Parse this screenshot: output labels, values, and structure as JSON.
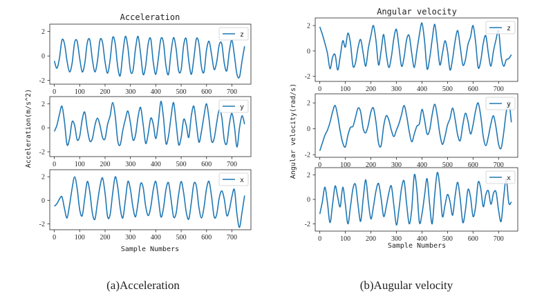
{
  "colors": {
    "line": "#1f77b4",
    "axis": "#222222",
    "background": "#ffffff"
  },
  "chart_data": [
    {
      "type": "line",
      "title": "Acceleration",
      "ylabel": "Acceleration(m/s^2)",
      "xlabel": "Sample Numbers",
      "caption": "(a)Acceleration",
      "panels": [
        {
          "legend": "z",
          "xlim": [
            -18,
            775
          ],
          "ylim": [
            -2.3,
            2.6
          ],
          "yticks": [
            -2,
            0,
            2
          ],
          "xticks": [
            0,
            100,
            200,
            300,
            400,
            500,
            600,
            700
          ],
          "x": [
            0,
            10,
            20,
            30,
            40,
            50,
            60,
            70,
            80,
            90,
            100,
            110,
            120,
            130,
            140,
            150,
            160,
            170,
            180,
            190,
            200,
            210,
            220,
            230,
            240,
            250,
            260,
            270,
            280,
            290,
            300,
            310,
            320,
            330,
            340,
            350,
            360,
            370,
            380,
            390,
            400,
            410,
            420,
            430,
            440,
            450,
            460,
            470,
            480,
            490,
            500,
            510,
            520,
            530,
            540,
            550,
            560,
            570,
            580,
            590,
            600,
            610,
            620,
            630,
            640,
            650,
            660,
            670,
            680,
            690,
            700,
            710,
            720,
            730,
            740,
            750
          ],
          "values": [
            -0.4,
            -1.0,
            -0.2,
            1.3,
            1.0,
            -0.4,
            -1.3,
            -0.6,
            1.1,
            1.2,
            -0.2,
            -1.3,
            -0.6,
            1.1,
            1.3,
            -0.3,
            -1.3,
            -0.4,
            1.3,
            1.1,
            -0.5,
            -1.4,
            -0.3,
            1.5,
            1.0,
            -0.9,
            -1.6,
            0.2,
            1.6,
            0.7,
            -1.2,
            -1.2,
            0.6,
            1.6,
            0.2,
            -1.5,
            -0.8,
            1.0,
            1.4,
            -0.5,
            -1.5,
            -0.2,
            1.4,
            1.1,
            -0.8,
            -1.5,
            0.3,
            1.5,
            0.6,
            -1.2,
            -1.1,
            0.9,
            1.4,
            -0.4,
            -1.5,
            -0.2,
            1.4,
            1.0,
            -0.9,
            -1.3,
            0.5,
            1.2,
            0.1,
            -1.1,
            -0.5,
            0.9,
            1.0,
            -0.6,
            -1.2,
            0.4,
            1.3,
            0.0,
            -1.5,
            -1.7,
            -0.4,
            0.8
          ]
        },
        {
          "legend": "y",
          "xlim": [
            -18,
            775
          ],
          "ylim": [
            -2.4,
            2.6
          ],
          "yticks": [
            -2,
            0,
            2
          ],
          "xticks": [
            0,
            100,
            200,
            300,
            400,
            500,
            600,
            700
          ],
          "x": [
            0,
            10,
            20,
            30,
            40,
            50,
            60,
            70,
            80,
            90,
            100,
            110,
            120,
            130,
            140,
            150,
            160,
            170,
            180,
            190,
            200,
            210,
            220,
            230,
            240,
            250,
            260,
            270,
            280,
            290,
            300,
            310,
            320,
            330,
            340,
            350,
            360,
            370,
            380,
            390,
            400,
            410,
            420,
            430,
            440,
            450,
            460,
            470,
            480,
            490,
            500,
            510,
            520,
            530,
            540,
            550,
            560,
            570,
            580,
            590,
            600,
            610,
            620,
            630,
            640,
            650,
            660,
            670,
            680,
            690,
            700,
            710,
            720,
            730,
            740,
            750
          ],
          "values": [
            -0.3,
            0.2,
            1.1,
            1.8,
            0.5,
            -1.4,
            -0.9,
            0.5,
            0.2,
            -1.0,
            -0.7,
            0.7,
            1.3,
            -0.1,
            -1.1,
            -0.9,
            0.2,
            0.8,
            0.2,
            -0.8,
            -0.9,
            0.3,
            1.0,
            2.1,
            1.0,
            -1.1,
            -1.4,
            -0.2,
            0.7,
            1.4,
            0.4,
            -1.0,
            -0.6,
            0.9,
            1.7,
            0.3,
            -1.3,
            -0.5,
            0.8,
            0.3,
            -0.9,
            0.4,
            2.2,
            0.9,
            -1.3,
            -0.7,
            0.9,
            2.1,
            0.4,
            -1.4,
            -0.8,
            0.7,
            0.2,
            -0.8,
            1.0,
            1.8,
            0.3,
            -1.2,
            -0.3,
            1.0,
            2.0,
            0.7,
            -1.1,
            -0.9,
            0.4,
            1.5,
            0.9,
            -1.0,
            -1.3,
            0.3,
            1.2,
            0.1,
            -1.6,
            0.0,
            1.0,
            0.3
          ]
        },
        {
          "legend": "x",
          "xlim": [
            -18,
            775
          ],
          "ylim": [
            -2.5,
            2.6
          ],
          "yticks": [
            -2,
            0,
            2
          ],
          "xticks": [
            0,
            100,
            200,
            300,
            400,
            500,
            600,
            700
          ],
          "x": [
            0,
            10,
            20,
            30,
            40,
            50,
            60,
            70,
            80,
            90,
            100,
            110,
            120,
            130,
            140,
            150,
            160,
            170,
            180,
            190,
            200,
            210,
            220,
            230,
            240,
            250,
            260,
            270,
            280,
            290,
            300,
            310,
            320,
            330,
            340,
            350,
            360,
            370,
            380,
            390,
            400,
            410,
            420,
            430,
            440,
            450,
            460,
            470,
            480,
            490,
            500,
            510,
            520,
            530,
            540,
            550,
            560,
            570,
            580,
            590,
            600,
            610,
            620,
            630,
            640,
            650,
            660,
            670,
            680,
            690,
            700,
            710,
            720,
            730,
            740,
            750
          ],
          "values": [
            -0.5,
            -0.3,
            0.1,
            0.3,
            -0.7,
            -1.5,
            -0.4,
            1.0,
            2.0,
            1.0,
            -0.8,
            -1.3,
            0.2,
            1.6,
            0.7,
            -1.1,
            -1.6,
            -0.2,
            1.2,
            1.9,
            0.6,
            -1.4,
            -1.2,
            0.6,
            2.0,
            1.1,
            -0.7,
            -1.5,
            0.0,
            1.6,
            0.9,
            -0.6,
            -1.4,
            -0.2,
            1.4,
            1.1,
            -0.5,
            -1.3,
            -0.6,
            0.9,
            1.6,
            0.2,
            -1.4,
            -0.7,
            0.9,
            1.5,
            0.1,
            -1.4,
            -1.1,
            0.5,
            1.6,
            0.6,
            -1.0,
            -1.6,
            -0.2,
            1.4,
            1.2,
            -0.6,
            -1.5,
            -0.6,
            1.0,
            1.6,
            0.3,
            -1.4,
            -1.2,
            0.2,
            0.8,
            0.1,
            -1.3,
            -0.8,
            0.3,
            0.9,
            -1.2,
            -2.3,
            -1.0,
            0.4
          ]
        }
      ]
    },
    {
      "type": "line",
      "title": "Angular velocity",
      "ylabel": "Angular velocity(rad/s)",
      "xlabel": "Sample Numbers",
      "caption": "(b)Augular velocity",
      "panels": [
        {
          "legend": "z",
          "xlim": [
            -18,
            775
          ],
          "ylim": [
            -2.4,
            2.6
          ],
          "yticks": [
            -2,
            0,
            2
          ],
          "xticks": [
            0,
            100,
            200,
            300,
            400,
            500,
            600,
            700
          ],
          "x": [
            0,
            10,
            20,
            30,
            40,
            50,
            60,
            70,
            80,
            90,
            100,
            110,
            120,
            130,
            140,
            150,
            160,
            170,
            180,
            190,
            200,
            210,
            220,
            230,
            240,
            250,
            260,
            270,
            280,
            290,
            300,
            310,
            320,
            330,
            340,
            350,
            360,
            370,
            380,
            390,
            400,
            410,
            420,
            430,
            440,
            450,
            460,
            470,
            480,
            490,
            500,
            510,
            520,
            530,
            540,
            550,
            560,
            570,
            580,
            590,
            600,
            610,
            620,
            630,
            640,
            650,
            660,
            670,
            680,
            690,
            700,
            710,
            720,
            730,
            740,
            750
          ],
          "values": [
            1.9,
            1.3,
            0.6,
            -0.2,
            -1.4,
            -0.5,
            -0.3,
            -1.5,
            -0.4,
            0.8,
            0.3,
            1.4,
            0.6,
            -1.2,
            -0.9,
            0.3,
            0.9,
            -0.2,
            -1.2,
            0.2,
            1.2,
            2.0,
            0.8,
            -1.1,
            0.0,
            1.3,
            -0.2,
            -1.3,
            -0.5,
            1.0,
            1.7,
            0.3,
            -1.2,
            -0.5,
            0.9,
            1.2,
            -0.2,
            -1.3,
            0.0,
            1.3,
            2.2,
            0.8,
            -1.4,
            -0.6,
            0.9,
            2.1,
            0.6,
            -1.1,
            -0.2,
            0.8,
            0.0,
            -1.5,
            -0.6,
            0.8,
            1.6,
            0.3,
            -1.1,
            -0.7,
            0.5,
            1.1,
            2.0,
            0.7,
            -1.3,
            -0.8,
            0.6,
            1.2,
            -0.2,
            -1.2,
            0.0,
            0.9,
            1.6,
            -0.4,
            -1.2,
            -0.7,
            -0.6,
            -0.3
          ]
        },
        {
          "legend": "y",
          "xlim": [
            -18,
            775
          ],
          "ylim": [
            -2.2,
            2.7
          ],
          "yticks": [
            -2,
            0,
            2
          ],
          "xticks": [
            0,
            100,
            200,
            300,
            400,
            500,
            600,
            700
          ],
          "x": [
            0,
            10,
            20,
            30,
            40,
            50,
            60,
            70,
            80,
            90,
            100,
            110,
            120,
            130,
            140,
            150,
            160,
            170,
            180,
            190,
            200,
            210,
            220,
            230,
            240,
            250,
            260,
            270,
            280,
            290,
            300,
            310,
            320,
            330,
            340,
            350,
            360,
            370,
            380,
            390,
            400,
            410,
            420,
            430,
            440,
            450,
            460,
            470,
            480,
            490,
            500,
            510,
            520,
            530,
            540,
            550,
            560,
            570,
            580,
            590,
            600,
            610,
            620,
            630,
            640,
            650,
            660,
            670,
            680,
            690,
            700,
            710,
            720,
            730,
            740,
            750
          ],
          "values": [
            -1.7,
            -1.1,
            -0.5,
            -0.1,
            0.5,
            1.3,
            1.8,
            1.0,
            -0.2,
            -1.1,
            -1.4,
            -0.5,
            0.1,
            0.2,
            0.9,
            1.6,
            1.3,
            0.0,
            -0.3,
            0.3,
            1.3,
            1.6,
            0.5,
            -1.1,
            -1.3,
            0.2,
            1.0,
            0.7,
            -0.1,
            -0.6,
            -0.1,
            0.4,
            1.1,
            1.8,
            1.0,
            -0.2,
            -1.0,
            -0.4,
            0.2,
            0.4,
            1.5,
            0.7,
            -0.4,
            -0.1,
            1.1,
            1.9,
            1.0,
            -0.4,
            -1.2,
            -0.6,
            0.3,
            0.8,
            1.6,
            0.7,
            -0.5,
            -0.9,
            0.3,
            1.2,
            0.6,
            -0.4,
            0.3,
            1.4,
            2.0,
            1.0,
            -0.6,
            -1.3,
            -0.6,
            0.4,
            1.0,
            0.1,
            -1.2,
            -1.5,
            -0.3,
            1.3,
            2.1,
            0.5
          ]
        },
        {
          "legend": "x",
          "xlim": [
            -18,
            775
          ],
          "ylim": [
            -2.6,
            2.6
          ],
          "yticks": [
            -2,
            0,
            2
          ],
          "xticks": [
            0,
            100,
            200,
            300,
            400,
            500,
            600,
            700
          ],
          "x": [
            0,
            10,
            20,
            30,
            40,
            50,
            60,
            70,
            80,
            90,
            100,
            110,
            120,
            130,
            140,
            150,
            160,
            170,
            180,
            190,
            200,
            210,
            220,
            230,
            240,
            250,
            260,
            270,
            280,
            290,
            300,
            310,
            320,
            330,
            340,
            350,
            360,
            370,
            380,
            390,
            400,
            410,
            420,
            430,
            440,
            450,
            460,
            470,
            480,
            490,
            500,
            510,
            520,
            530,
            540,
            550,
            560,
            570,
            580,
            590,
            600,
            610,
            620,
            630,
            640,
            650,
            660,
            670,
            680,
            690,
            700,
            710,
            720,
            730,
            740,
            750
          ],
          "values": [
            -1.2,
            -0.2,
            1.0,
            -0.3,
            -1.9,
            -0.4,
            1.1,
            0.2,
            -0.6,
            1.0,
            -0.4,
            -2.0,
            -0.6,
            0.9,
            1.2,
            -0.5,
            -1.8,
            0.1,
            1.6,
            -0.2,
            -1.6,
            -0.6,
            0.7,
            1.3,
            0.1,
            -1.4,
            -0.6,
            0.5,
            1.1,
            -0.5,
            -2.1,
            -0.8,
            0.9,
            1.5,
            -0.4,
            -2.0,
            -0.8,
            2.0,
            0.8,
            -1.9,
            -1.2,
            0.3,
            1.7,
            -0.4,
            -2.0,
            0.4,
            2.2,
            1.0,
            -1.4,
            -0.5,
            0.4,
            -0.2,
            -1.3,
            0.3,
            1.4,
            0.0,
            -1.9,
            -0.9,
            0.8,
            0.2,
            -1.4,
            -0.6,
            1.4,
            0.9,
            -0.6,
            0.4,
            0.7,
            -0.4,
            0.5,
            0.6,
            -0.9,
            -1.8,
            0.2,
            1.7,
            -0.3,
            -0.2
          ]
        }
      ]
    }
  ]
}
